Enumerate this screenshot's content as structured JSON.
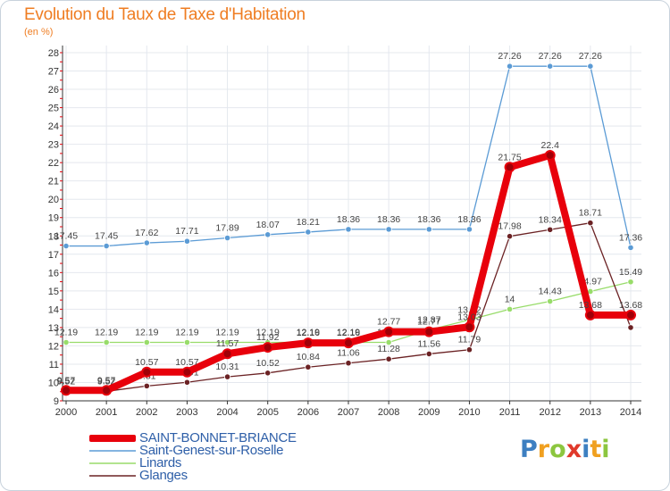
{
  "header": {
    "title": "Evolution du Taux de Taxe d'Habitation",
    "subtitle": "(en %)"
  },
  "logo": {
    "text": "Proxiti",
    "letters": [
      {
        "ch": "P",
        "color": "#3d7fc1"
      },
      {
        "ch": "r",
        "color": "#f0a020"
      },
      {
        "ch": "o",
        "color": "#8cc63f"
      },
      {
        "ch": "x",
        "color": "#e0392b"
      },
      {
        "ch": "i",
        "color": "#3d7fc1"
      },
      {
        "ch": "t",
        "color": "#f0a020"
      },
      {
        "ch": "i",
        "color": "#8cc63f"
      }
    ]
  },
  "chart_data": {
    "type": "line",
    "x": [
      "2000",
      "2001",
      "2002",
      "2003",
      "2004",
      "2005",
      "2006",
      "2007",
      "2008",
      "2009",
      "2010",
      "2011",
      "2012",
      "2013",
      "2014"
    ],
    "ylim": [
      9,
      28
    ],
    "yticks": [
      9,
      10,
      11,
      12,
      13,
      14,
      15,
      16,
      17,
      18,
      19,
      20,
      21,
      22,
      23,
      24,
      25,
      26,
      27,
      28
    ],
    "grid": true,
    "legend_position": "bottom-left",
    "series": [
      {
        "name": "SAINT-BONNET-BRIANCE",
        "color": "#e8000b",
        "values": [
          9.57,
          9.57,
          10.57,
          10.57,
          11.57,
          11.92,
          12.16,
          12.16,
          12.77,
          12.77,
          13.03,
          21.75,
          22.4,
          13.68,
          13.68
        ],
        "labels": [
          "9.57",
          "9.57",
          "10.57",
          "10.57",
          "11.57",
          "11.92",
          "12.16",
          "12.16",
          "12.77",
          "12.77",
          "13.03",
          "21.75",
          "22.4",
          "13.68",
          "13.68"
        ]
      },
      {
        "name": "Saint-Genest-sur-Roselle",
        "color": "#5b9bd5",
        "values": [
          17.45,
          17.45,
          17.62,
          17.71,
          17.89,
          18.07,
          18.21,
          18.36,
          18.36,
          18.36,
          18.36,
          27.26,
          27.26,
          27.26,
          17.36
        ],
        "labels": [
          "17.45",
          "17.45",
          "17.62",
          "17.71",
          "17.89",
          "18.07",
          "18.21",
          "18.36",
          "18.36",
          "18.36",
          "18.36",
          "27.26",
          "27.26",
          "27.26",
          "17.36"
        ]
      },
      {
        "name": "Linards",
        "color": "#98dc6a",
        "values": [
          12.19,
          12.19,
          12.19,
          12.19,
          12.19,
          12.19,
          12.19,
          12.19,
          12.19,
          12.87,
          13.42,
          14,
          14.43,
          14.97,
          15.49
        ],
        "labels": [
          "12.19",
          "12.19",
          "12.19",
          "12.19",
          "12.19",
          "12.19",
          "12.19",
          "12.19",
          "12.19",
          "12.87",
          "13.42",
          "14",
          "14.43",
          "14.97",
          "15.49"
        ]
      },
      {
        "name": "Glanges",
        "color": "#6b2224",
        "values": [
          9.52,
          9.52,
          9.81,
          10.01,
          10.31,
          10.52,
          10.84,
          11.06,
          11.28,
          11.56,
          11.79,
          17.98,
          18.34,
          18.71,
          13.0
        ],
        "labels": [
          "9.52",
          "9.52",
          "9.81",
          "10.01",
          "10.31",
          "10.52",
          "10.84",
          "11.06",
          "11.28",
          "11.56",
          "11.79",
          "17.98",
          "18.34",
          "18.71",
          ""
        ]
      }
    ]
  }
}
